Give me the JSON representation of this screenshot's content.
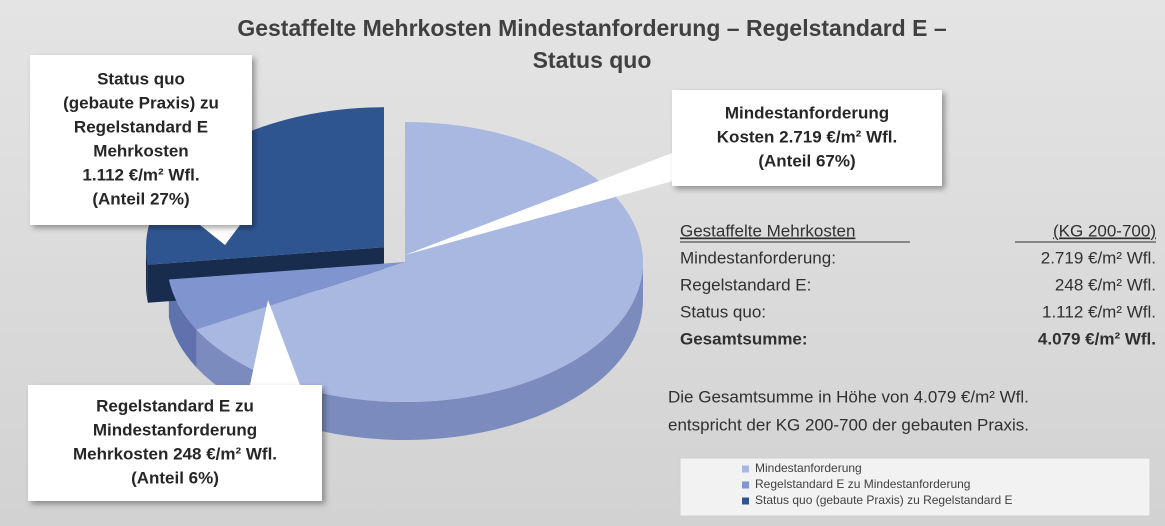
{
  "chart_data": {
    "type": "pie",
    "title": [
      "Gestaffelte Mehrkosten Mindestanforderung – Regelstandard E –",
      "Status quo"
    ],
    "categories": [
      "Mindestanforderung",
      "Regelstandard E zu Mindestanforderung",
      "Status quo (gebaute Praxis) zu Regelstandard E"
    ],
    "values": [
      67,
      6,
      27
    ],
    "colors": [
      "#a9b8e1",
      "#8094cf",
      "#2f5591"
    ],
    "side_colors": [
      "#7b8bbd",
      "#5f72ad",
      "#182c4d"
    ],
    "exploded": [
      false,
      false,
      true
    ],
    "callouts": [
      [
        "Mindestanforderung",
        "Kosten 2.719 €/m² Wfl.",
        "(Anteil 67%)"
      ],
      [
        "Regelstandard E zu",
        "Mindestanforderung",
        "Mehrkosten 248 €/m² Wfl.",
        "(Anteil 6%)"
      ],
      [
        "Status quo",
        "(gebaute Praxis) zu",
        "Regelstandard E",
        "Mehrkosten",
        "1.112 €/m² Wfl.",
        "(Anteil 27%)"
      ]
    ],
    "legend": "bottom-right",
    "table": {
      "header": [
        "Gestaffelte Mehrkosten",
        "(KG 200-700)"
      ],
      "rows": [
        [
          "Mindestanforderung:",
          "2.719 €/m² Wfl."
        ],
        [
          "Regelstandard E:",
          "248 €/m² Wfl."
        ],
        [
          "Status quo:",
          "1.112 €/m² Wfl."
        ],
        [
          "Gesamtsumme:",
          "4.079 €/m² Wfl."
        ]
      ]
    },
    "note": [
      "Die Gesamtsumme in Höhe von 4.079 €/m² Wfl.",
      "entspricht der KG 200-700 der gebauten Praxis."
    ]
  }
}
